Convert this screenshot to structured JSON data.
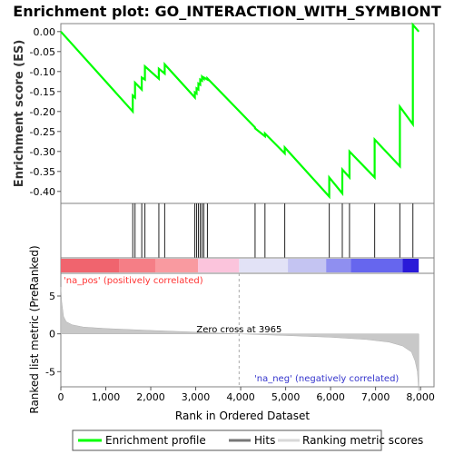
{
  "chart_data": {
    "type": "line",
    "title": "Enrichment plot: GO_INTERACTION_WITH_SYMBIONT",
    "es_panel": {
      "ylabel": "Enrichment score (ES)",
      "ylim": [
        -0.43,
        0.02
      ],
      "yticks": [
        "0.00",
        "-0.05",
        "-0.10",
        "-0.15",
        "-0.20",
        "-0.25",
        "-0.30",
        "-0.35",
        "-0.40"
      ],
      "ytick_values": [
        0.0,
        -0.05,
        -0.1,
        -0.15,
        -0.2,
        -0.25,
        -0.3,
        -0.35,
        -0.4
      ],
      "series": [
        {
          "name": "Enrichment profile",
          "color": "#00ff00",
          "x": [
            0,
            1600,
            1600,
            1650,
            1650,
            1800,
            1800,
            1870,
            1870,
            2180,
            2180,
            2310,
            2310,
            2980,
            2980,
            3020,
            3020,
            3060,
            3060,
            3100,
            3100,
            3140,
            3140,
            3180,
            3180,
            3260,
            3260,
            4320,
            4320,
            4540,
            4540,
            4980,
            4980,
            5970,
            5970,
            6260,
            6260,
            6420,
            6420,
            6980,
            6980,
            7540,
            7540,
            7830,
            7830,
            7960
          ],
          "y": [
            0.0,
            -0.2,
            -0.16,
            -0.165,
            -0.128,
            -0.145,
            -0.115,
            -0.12,
            -0.087,
            -0.118,
            -0.093,
            -0.105,
            -0.082,
            -0.165,
            -0.152,
            -0.155,
            -0.142,
            -0.145,
            -0.13,
            -0.133,
            -0.12,
            -0.123,
            -0.113,
            -0.118,
            -0.115,
            -0.12,
            -0.117,
            -0.24,
            -0.242,
            -0.262,
            -0.255,
            -0.305,
            -0.29,
            -0.413,
            -0.365,
            -0.405,
            -0.345,
            -0.365,
            -0.3,
            -0.365,
            -0.27,
            -0.337,
            -0.188,
            -0.232,
            0.017,
            0.0
          ]
        }
      ]
    },
    "hits_panel": {
      "name": "Hits",
      "positions": [
        1600,
        1650,
        1800,
        1870,
        2180,
        2310,
        2980,
        3020,
        3060,
        3100,
        3140,
        3180,
        3260,
        4320,
        4540,
        4980,
        5970,
        6260,
        6420,
        6980,
        7540,
        7830
      ]
    },
    "color_bar": {
      "segments": [
        {
          "from": 0,
          "to": 1300,
          "color": "#f0646e"
        },
        {
          "from": 1300,
          "to": 2100,
          "color": "#f57e86"
        },
        {
          "from": 2100,
          "to": 3050,
          "color": "#f99aa0"
        },
        {
          "from": 3050,
          "to": 3965,
          "color": "#fbc4dc"
        },
        {
          "from": 3965,
          "to": 5050,
          "color": "#e2e2f6"
        },
        {
          "from": 5050,
          "to": 5900,
          "color": "#c4c4f2"
        },
        {
          "from": 5900,
          "to": 6450,
          "color": "#8f8ff0"
        },
        {
          "from": 6450,
          "to": 7600,
          "color": "#6666ee"
        },
        {
          "from": 7600,
          "to": 7960,
          "color": "#2a1ad8"
        }
      ]
    },
    "rank_panel": {
      "ylabel": "Ranked list metric (PreRanked)",
      "xlabel": "Rank in Ordered Dataset",
      "ylim": [
        -7,
        8
      ],
      "yticks": [
        "5",
        "0",
        "-5"
      ],
      "ytick_values": [
        5,
        0,
        -5
      ],
      "xlim": [
        0,
        8300
      ],
      "xticks": [
        "0",
        "1,000",
        "2,000",
        "3,000",
        "4,000",
        "5,000",
        "6,000",
        "7,000",
        "8,000"
      ],
      "xtick_values": [
        0,
        1000,
        2000,
        3000,
        4000,
        5000,
        6000,
        7000,
        8000
      ],
      "series_name": "Ranking metric scores",
      "metric_x": [
        0,
        20,
        60,
        120,
        250,
        500,
        1000,
        2000,
        3000,
        3965,
        5000,
        6000,
        6800,
        7300,
        7600,
        7800,
        7880,
        7930,
        7960
      ],
      "metric_y": [
        6.2,
        4.2,
        2.3,
        1.6,
        1.2,
        0.9,
        0.7,
        0.45,
        0.22,
        0.0,
        -0.22,
        -0.45,
        -0.75,
        -1.1,
        -1.6,
        -2.4,
        -3.6,
        -5.0,
        -7.6
      ],
      "zero_cross_label": "Zero cross at 3965",
      "zero_cross": 3965,
      "pos_label": "'na_pos' (positively correlated)",
      "neg_label": "'na_neg' (negatively correlated)"
    },
    "legend": {
      "items": [
        "Enrichment profile",
        "Hits",
        "Ranking metric scores"
      ],
      "colors": [
        "#00ff00",
        "#777777",
        "#d8d8d8"
      ]
    }
  }
}
